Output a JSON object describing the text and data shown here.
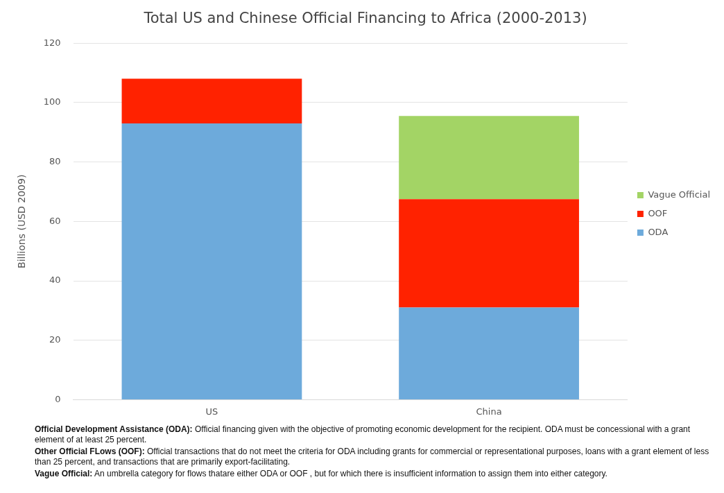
{
  "chart_data": {
    "type": "bar",
    "title": "Total US and Chinese Official Financing to Africa (2000-2013)",
    "ylabel": "Billions (USD 2009)",
    "categories": [
      "US",
      "China"
    ],
    "stacked": true,
    "series": [
      {
        "name": "ODA",
        "color": "#6daadb",
        "values": [
          93,
          31
        ]
      },
      {
        "name": "OOF",
        "color": "#ff2200",
        "values": [
          15,
          36.5
        ]
      },
      {
        "name": "Vague Official",
        "color": "#a3d465",
        "values": [
          null,
          28
        ]
      }
    ],
    "ylim": [
      0,
      120
    ],
    "yticks": [
      0,
      20,
      40,
      60,
      80,
      100,
      120
    ],
    "grid": "y",
    "legend": "right",
    "annotations": [
      "Official Development Assistance (ODA): Official financing given with the objective of promoting economic development for the recipient. ODA must be concessional with a grant element of at least 25 percent.",
      "Other Official FLows (OOF): Official transactions that do not meet the criteria for ODA including grants for commercial or representational purposes, loans with a grant element of less than 25 percent, and transactions that are primarily export-facilitating.",
      "Vague Official: An umbrella category for flows thatare either ODA or OOF , but for which there is insufficient information to assign them into either category."
    ]
  }
}
